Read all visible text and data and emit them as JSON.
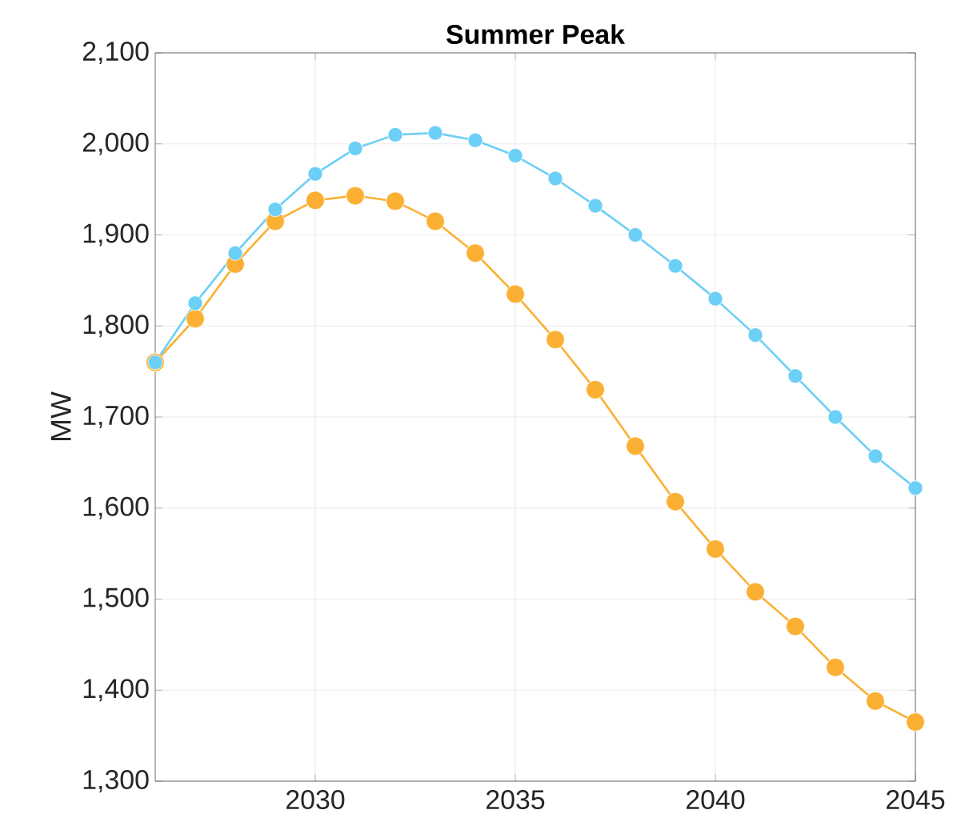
{
  "chart_data": {
    "type": "line",
    "title": "Summer Peak",
    "ylabel": "MW",
    "x": [
      2026,
      2027,
      2028,
      2029,
      2030,
      2031,
      2032,
      2033,
      2034,
      2035,
      2036,
      2037,
      2038,
      2039,
      2040,
      2041,
      2042,
      2043,
      2044,
      2045
    ],
    "series": [
      {
        "color": "#6ccff6",
        "values": [
          1760,
          1825,
          1880,
          1928,
          1967,
          1995,
          2010,
          2012,
          2004,
          1987,
          1962,
          1932,
          1900,
          1866,
          1830,
          1790,
          1745,
          1700,
          1657,
          1622
        ]
      },
      {
        "color": "#fbb034",
        "values": [
          1760,
          1808,
          1868,
          1915,
          1938,
          1943,
          1937,
          1915,
          1880,
          1835,
          1785,
          1730,
          1668,
          1607,
          1555,
          1508,
          1470,
          1425,
          1388,
          1365
        ]
      }
    ],
    "xlim": [
      2026,
      2045
    ],
    "ylim": [
      1300,
      2100
    ],
    "xticks": [
      2030,
      2035,
      2040,
      2045
    ],
    "yticks": [
      {
        "value": 1300,
        "label": "1,300"
      },
      {
        "value": 1400,
        "label": "1,400"
      },
      {
        "value": 1500,
        "label": "1,500"
      },
      {
        "value": 1600,
        "label": "1,600"
      },
      {
        "value": 1700,
        "label": "1,700"
      },
      {
        "value": 1800,
        "label": "1,800"
      },
      {
        "value": 1900,
        "label": "1,900"
      },
      {
        "value": 2000,
        "label": "2,000"
      },
      {
        "value": 2100,
        "label": "2,100"
      }
    ],
    "grid": true,
    "marker": "circle",
    "line_style": "solid"
  }
}
